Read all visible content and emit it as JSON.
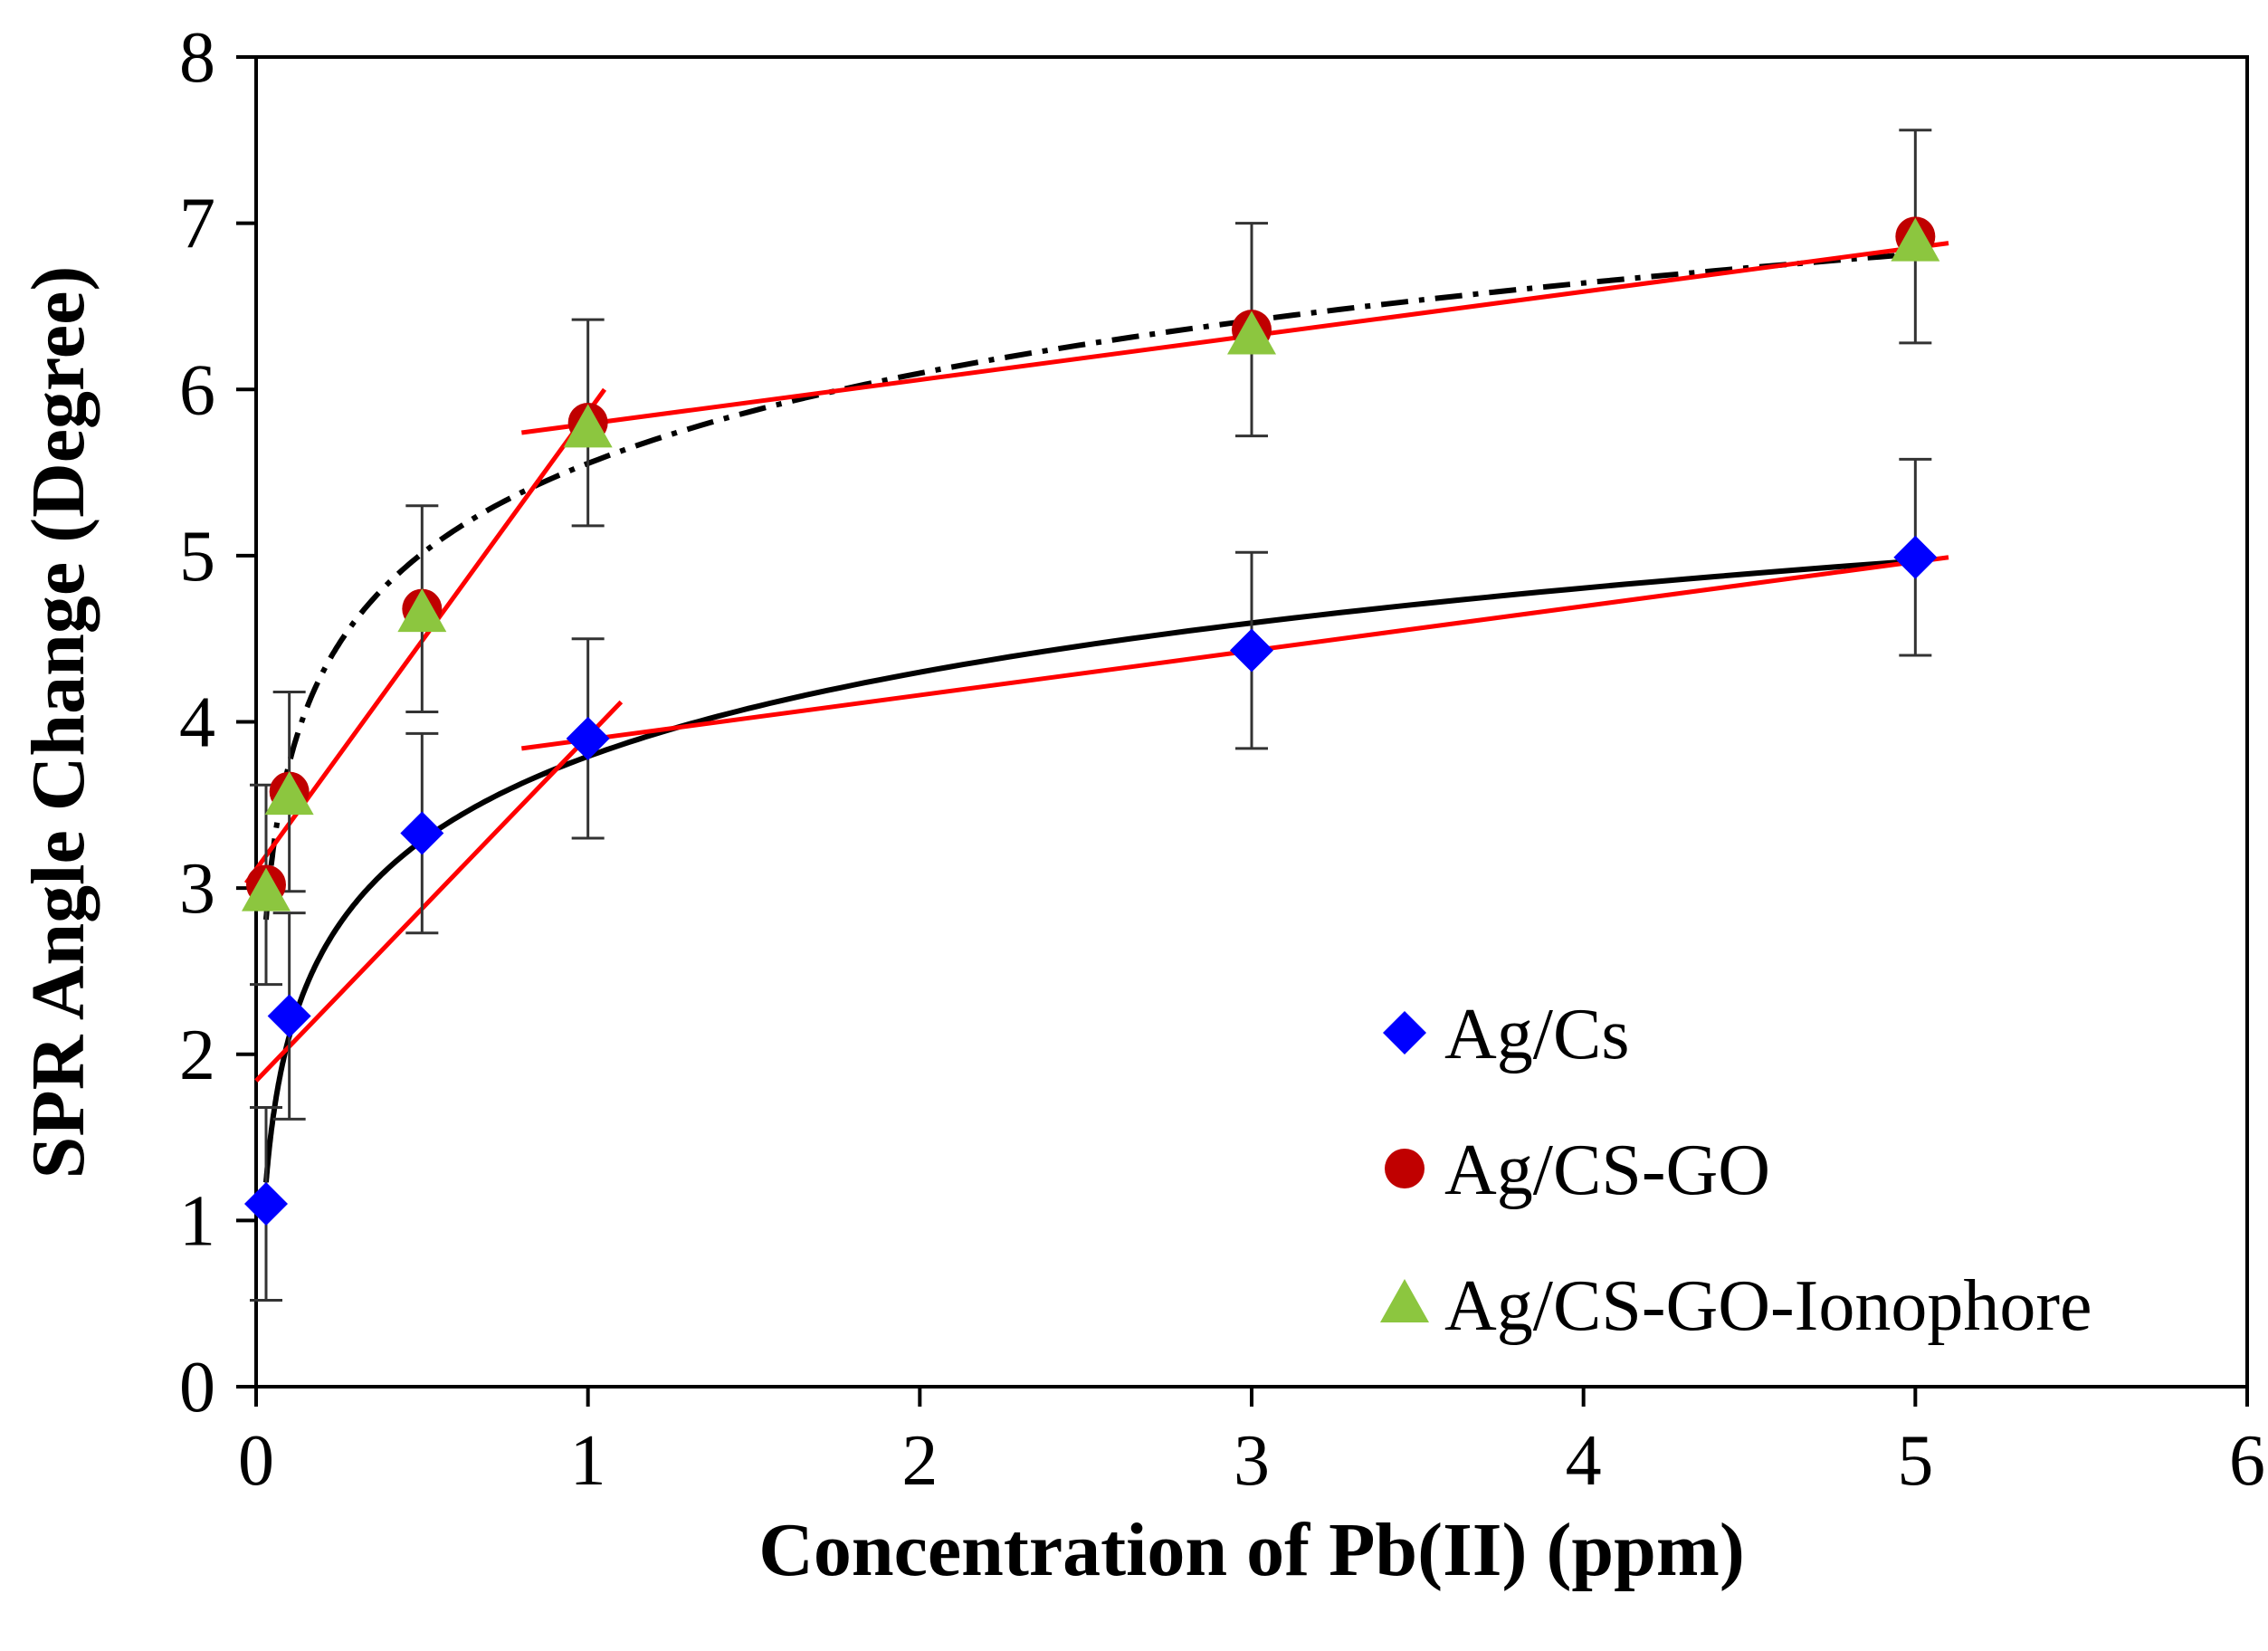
{
  "chart_data": {
    "type": "scatter",
    "title": "",
    "xlabel": "Concentration of Pb(II) (ppm)",
    "ylabel": "SPR Angle Change (Degree)",
    "xlim": [
      0,
      6
    ],
    "ylim": [
      0,
      8
    ],
    "xticks": [
      "0",
      "1",
      "2",
      "3",
      "4",
      "5",
      "6"
    ],
    "yticks": [
      "0",
      "1",
      "2",
      "3",
      "4",
      "5",
      "6",
      "7",
      "8"
    ],
    "legend_position": "bottom-right",
    "series": [
      {
        "name": "Ag/Cs",
        "marker": "diamond",
        "color": "#0000ff",
        "x": [
          0.03,
          0.1,
          0.5,
          1,
          3,
          5
        ],
        "y": [
          1.1,
          2.23,
          3.33,
          3.9,
          4.43,
          4.99
        ],
        "error": [
          0.58,
          0.62,
          0.6,
          0.6,
          0.59,
          0.59
        ],
        "fit_curve": {
          "style": "solid",
          "color": "#000000"
        },
        "fit_lines": [
          {
            "color": "#ff0000",
            "x": [
              0,
              1.1
            ],
            "y": [
              1.84,
              4.12
            ]
          },
          {
            "color": "#ff0000",
            "x": [
              0.8,
              5.1
            ],
            "y": [
              3.84,
              4.99
            ]
          }
        ]
      },
      {
        "name": "Ag/CS-GO",
        "marker": "circle",
        "color": "#c00000",
        "x": [
          0.03,
          0.1,
          0.5,
          1,
          3,
          5
        ],
        "y": [
          3.02,
          3.58,
          4.68,
          5.8,
          6.36,
          6.92
        ],
        "error": [
          0.6,
          0.6,
          0.62,
          0.62,
          0.64,
          0.64
        ],
        "fit_curve": {
          "style": "dash-dot",
          "color": "#000000"
        },
        "fit_lines": [
          {
            "color": "#ff0000",
            "x": [
              -0.03,
              1.05
            ],
            "y": [
              3.03,
              6.0
            ]
          },
          {
            "color": "#ff0000",
            "x": [
              0.8,
              5.1
            ],
            "y": [
              5.74,
              6.88
            ]
          }
        ]
      },
      {
        "name": "Ag/CS-GO-Ionophore",
        "marker": "triangle",
        "color": "#8cc63f",
        "x": [
          0.03,
          0.1,
          0.5,
          1,
          3,
          5
        ],
        "y": [
          2.97,
          3.55,
          4.65,
          5.76,
          6.32,
          6.88
        ],
        "error": [],
        "fit_curve": null,
        "fit_lines": []
      }
    ]
  }
}
